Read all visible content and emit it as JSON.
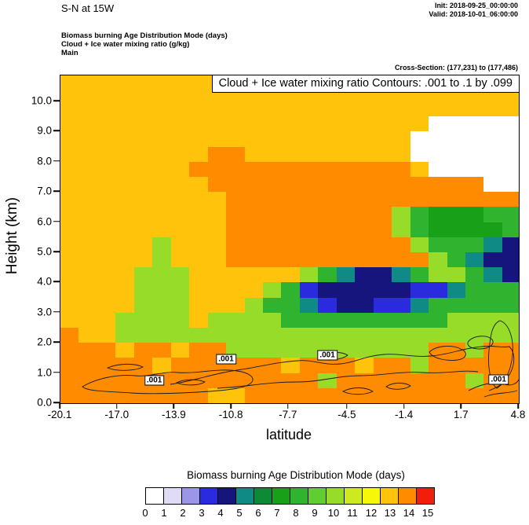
{
  "header": {
    "title": "S-N at 15W",
    "init": "Init: 2018-09-25_00:00:00",
    "valid": "Valid: 2018-10-01_06:00:00",
    "subtitle_lines": [
      "Biomass burning Age Distribution Mode   (days)",
      "Cloud + Ice water mixing ratio   (g/kg)",
      "Main"
    ],
    "cross_section": "Cross-Section: (177,231) to (177,486)"
  },
  "chart_data": {
    "type": "heatmap",
    "contour_title": "Cloud + Ice water mixing ratio Contours: .001 to .1 by .099",
    "xlabel": "latitude",
    "ylabel": "Height (km)",
    "xlim": [
      -20.1,
      4.8
    ],
    "ylim": [
      0,
      10.86
    ],
    "x_ticks": [
      {
        "label": "-20.1",
        "value": -20.1
      },
      {
        "label": "-17.0",
        "value": -17.0
      },
      {
        "label": "-13.9",
        "value": -13.9
      },
      {
        "label": "-10.8",
        "value": -10.8
      },
      {
        "label": "-7.7",
        "value": -7.7
      },
      {
        "label": "-4.5",
        "value": -4.5
      },
      {
        "label": "-1.4",
        "value": -1.4
      },
      {
        "label": "1.7",
        "value": 1.7
      },
      {
        "label": "4.8",
        "value": 4.8
      }
    ],
    "y_ticks": [
      {
        "label": "0.0",
        "value": 0
      },
      {
        "label": "1.0",
        "value": 1
      },
      {
        "label": "2.0",
        "value": 2
      },
      {
        "label": "3.0",
        "value": 3
      },
      {
        "label": "4.0",
        "value": 4
      },
      {
        "label": "5.0",
        "value": 5
      },
      {
        "label": "6.0",
        "value": 6
      },
      {
        "label": "7.0",
        "value": 7
      },
      {
        "label": "8.0",
        "value": 8
      },
      {
        "label": "9.0",
        "value": 9
      },
      {
        "label": "10.0",
        "value": 10
      }
    ],
    "contour_labels": [
      {
        "text": ".001",
        "lat": -15.0,
        "km": 0.75
      },
      {
        "text": ".001",
        "lat": -11.1,
        "km": 1.45
      },
      {
        "text": ".001",
        "lat": -5.6,
        "km": 1.6
      },
      {
        "text": ".001",
        "lat": 3.7,
        "km": 0.78
      }
    ],
    "legend": {
      "title": "Biomass burning Age Distribution Mode  (days)",
      "tick_labels": [
        "0",
        "1",
        "2",
        "3",
        "4",
        "5",
        "6",
        "7",
        "8",
        "9",
        "10",
        "11",
        "12",
        "13",
        "14",
        "15"
      ],
      "colors": [
        "#FFFFFF",
        "#E0DCF5",
        "#9C96E8",
        "#2A2ADF",
        "#15157D",
        "#108A85",
        "#0C8A38",
        "#18A018",
        "#30B430",
        "#5FCE30",
        "#96DC28",
        "#CDE920",
        "#F7F70A",
        "#FFC30B",
        "#FF8C00",
        "#F01E0A"
      ]
    },
    "grid": {
      "x_start": -19.6,
      "x_step": 1.0,
      "heights": [
        10.25,
        9.75,
        9.25,
        8.75,
        8.25,
        7.75,
        7.25,
        6.75,
        6.25,
        5.75,
        5.25,
        4.75,
        4.25,
        3.75,
        3.25,
        2.75,
        2.25,
        1.75,
        1.25,
        0.75,
        0.25
      ],
      "values": [
        [
          13,
          13,
          13,
          13,
          13,
          13,
          13,
          13,
          13,
          13,
          13,
          13,
          13,
          13,
          13,
          13,
          13,
          13,
          13,
          13,
          13,
          13,
          13,
          13,
          13
        ],
        [
          13,
          13,
          13,
          13,
          13,
          13,
          13,
          13,
          13,
          13,
          13,
          13,
          13,
          13,
          13,
          13,
          13,
          13,
          13,
          13,
          13,
          13,
          13,
          13,
          13
        ],
        [
          13,
          13,
          13,
          13,
          13,
          13,
          13,
          13,
          13,
          13,
          13,
          13,
          13,
          13,
          13,
          13,
          13,
          13,
          13,
          13,
          0,
          0,
          0,
          0,
          0
        ],
        [
          13,
          13,
          13,
          13,
          13,
          13,
          13,
          13,
          13,
          13,
          13,
          13,
          13,
          13,
          13,
          13,
          13,
          13,
          13,
          0,
          0,
          0,
          0,
          0,
          0
        ],
        [
          13,
          13,
          13,
          13,
          13,
          13,
          13,
          13,
          14,
          14,
          13,
          13,
          13,
          13,
          13,
          13,
          13,
          13,
          13,
          0,
          0,
          0,
          0,
          0,
          0
        ],
        [
          13,
          13,
          13,
          13,
          13,
          13,
          13,
          14,
          14,
          14,
          14,
          14,
          14,
          14,
          14,
          14,
          14,
          14,
          14,
          13,
          0,
          0,
          0,
          0,
          0
        ],
        [
          13,
          13,
          13,
          13,
          13,
          13,
          13,
          13,
          14,
          14,
          14,
          14,
          14,
          14,
          14,
          14,
          14,
          14,
          14,
          14,
          14,
          14,
          14,
          0,
          0
        ],
        [
          13,
          13,
          13,
          13,
          13,
          13,
          13,
          13,
          13,
          14,
          14,
          14,
          14,
          14,
          14,
          14,
          14,
          14,
          14,
          14,
          14,
          14,
          14,
          14,
          14
        ],
        [
          13,
          13,
          13,
          13,
          13,
          13,
          13,
          13,
          13,
          14,
          14,
          14,
          14,
          14,
          14,
          14,
          14,
          14,
          10,
          8,
          7,
          7,
          7,
          8,
          8
        ],
        [
          13,
          13,
          13,
          13,
          13,
          13,
          13,
          13,
          13,
          14,
          14,
          14,
          14,
          14,
          14,
          14,
          14,
          14,
          10,
          8,
          7,
          7,
          7,
          7,
          8
        ],
        [
          13,
          13,
          13,
          13,
          13,
          10,
          13,
          13,
          13,
          14,
          14,
          14,
          14,
          14,
          14,
          14,
          14,
          14,
          14,
          10,
          8,
          8,
          8,
          5,
          4
        ],
        [
          13,
          13,
          13,
          13,
          13,
          10,
          13,
          13,
          13,
          14,
          14,
          14,
          14,
          14,
          14,
          14,
          14,
          14,
          14,
          14,
          10,
          8,
          5,
          4,
          4
        ],
        [
          13,
          13,
          13,
          13,
          10,
          10,
          10,
          13,
          13,
          13,
          13,
          13,
          13,
          10,
          8,
          5,
          4,
          4,
          5,
          8,
          10,
          10,
          8,
          5,
          4
        ],
        [
          13,
          13,
          13,
          13,
          10,
          10,
          10,
          13,
          13,
          13,
          13,
          10,
          8,
          3,
          4,
          4,
          4,
          4,
          4,
          3,
          3,
          5,
          8,
          8,
          8
        ],
        [
          13,
          13,
          13,
          13,
          10,
          10,
          10,
          13,
          13,
          13,
          10,
          8,
          8,
          5,
          3,
          4,
          4,
          3,
          3,
          5,
          8,
          8,
          8,
          8,
          8
        ],
        [
          13,
          13,
          13,
          10,
          10,
          10,
          10,
          13,
          10,
          10,
          10,
          10,
          8,
          8,
          8,
          8,
          8,
          8,
          8,
          8,
          8,
          10,
          10,
          10,
          10
        ],
        [
          14,
          13,
          13,
          10,
          10,
          10,
          10,
          10,
          10,
          10,
          10,
          10,
          10,
          10,
          10,
          10,
          10,
          10,
          10,
          10,
          10,
          10,
          10,
          10,
          10
        ],
        [
          14,
          14,
          14,
          13,
          14,
          14,
          13,
          14,
          14,
          10,
          10,
          10,
          10,
          10,
          10,
          10,
          10,
          10,
          10,
          10,
          14,
          14,
          10,
          14,
          14
        ],
        [
          14,
          14,
          14,
          14,
          14,
          13,
          14,
          14,
          14,
          14,
          14,
          14,
          13,
          14,
          14,
          14,
          13,
          14,
          14,
          10,
          14,
          14,
          14,
          14,
          14
        ],
        [
          14,
          14,
          14,
          14,
          14,
          14,
          14,
          14,
          14,
          14,
          14,
          14,
          14,
          14,
          10,
          14,
          14,
          14,
          14,
          14,
          14,
          14,
          10,
          14,
          14
        ],
        [
          14,
          14,
          14,
          14,
          14,
          14,
          14,
          14,
          13,
          13,
          14,
          14,
          14,
          14,
          14,
          14,
          14,
          14,
          14,
          14,
          14,
          14,
          14,
          14,
          14
        ]
      ]
    }
  }
}
